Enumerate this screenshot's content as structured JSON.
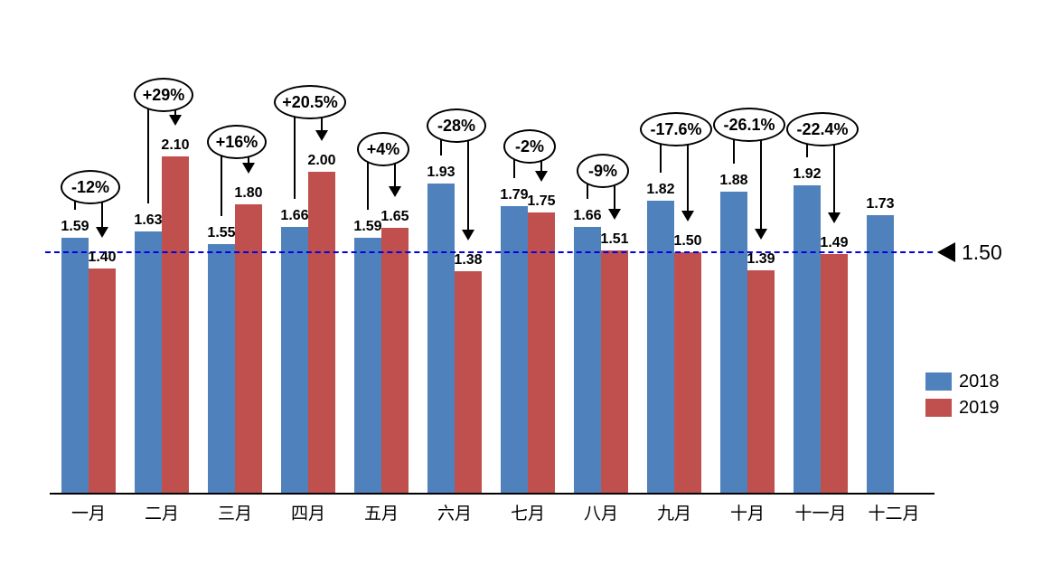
{
  "chart_data": {
    "type": "bar",
    "title": "",
    "xlabel": "",
    "ylabel": "",
    "ylim": [
      0,
      2.2
    ],
    "grid": false,
    "legend_position": "right",
    "categories": [
      "一月",
      "二月",
      "三月",
      "四月",
      "五月",
      "六月",
      "七月",
      "八月",
      "九月",
      "十月",
      "十一月",
      "十二月"
    ],
    "series": [
      {
        "name": "2018",
        "color": "#4F81BD",
        "values": [
          1.59,
          1.63,
          1.55,
          1.66,
          1.59,
          1.93,
          1.79,
          1.66,
          1.82,
          1.88,
          1.92,
          1.73
        ]
      },
      {
        "name": "2019",
        "color": "#C0504D",
        "values": [
          1.4,
          2.1,
          1.8,
          2.0,
          1.65,
          1.38,
          1.75,
          1.51,
          1.5,
          1.39,
          1.49,
          null
        ]
      }
    ],
    "annotations": [
      {
        "category": "一月",
        "label": "-12%",
        "ellipse_center_y": 205
      },
      {
        "category": "二月",
        "label": "+29%",
        "ellipse_center_y": 103
      },
      {
        "category": "三月",
        "label": "+16%",
        "ellipse_center_y": 155
      },
      {
        "category": "四月",
        "label": "+20.5%",
        "ellipse_center_y": 111
      },
      {
        "category": "五月",
        "label": "+4%",
        "ellipse_center_y": 163
      },
      {
        "category": "六月",
        "label": "-28%",
        "ellipse_center_y": 137
      },
      {
        "category": "七月",
        "label": "-2%",
        "ellipse_center_y": 160
      },
      {
        "category": "八月",
        "label": "-9%",
        "ellipse_center_y": 187
      },
      {
        "category": "九月",
        "label": "-17.6%",
        "ellipse_center_y": 141
      },
      {
        "category": "十月",
        "label": "-26.1%",
        "ellipse_center_y": 136
      },
      {
        "category": "十一月",
        "label": "-22.4%",
        "ellipse_center_y": 141
      }
    ],
    "reference_line": {
      "value": 1.5,
      "label": "1.50",
      "style": "dashed",
      "color": "#0000E6",
      "marker": "left-triangle"
    },
    "legend": {
      "entries": [
        {
          "label": "2018",
          "color": "#4F81BD"
        },
        {
          "label": "2019",
          "color": "#C0504D"
        }
      ]
    }
  }
}
